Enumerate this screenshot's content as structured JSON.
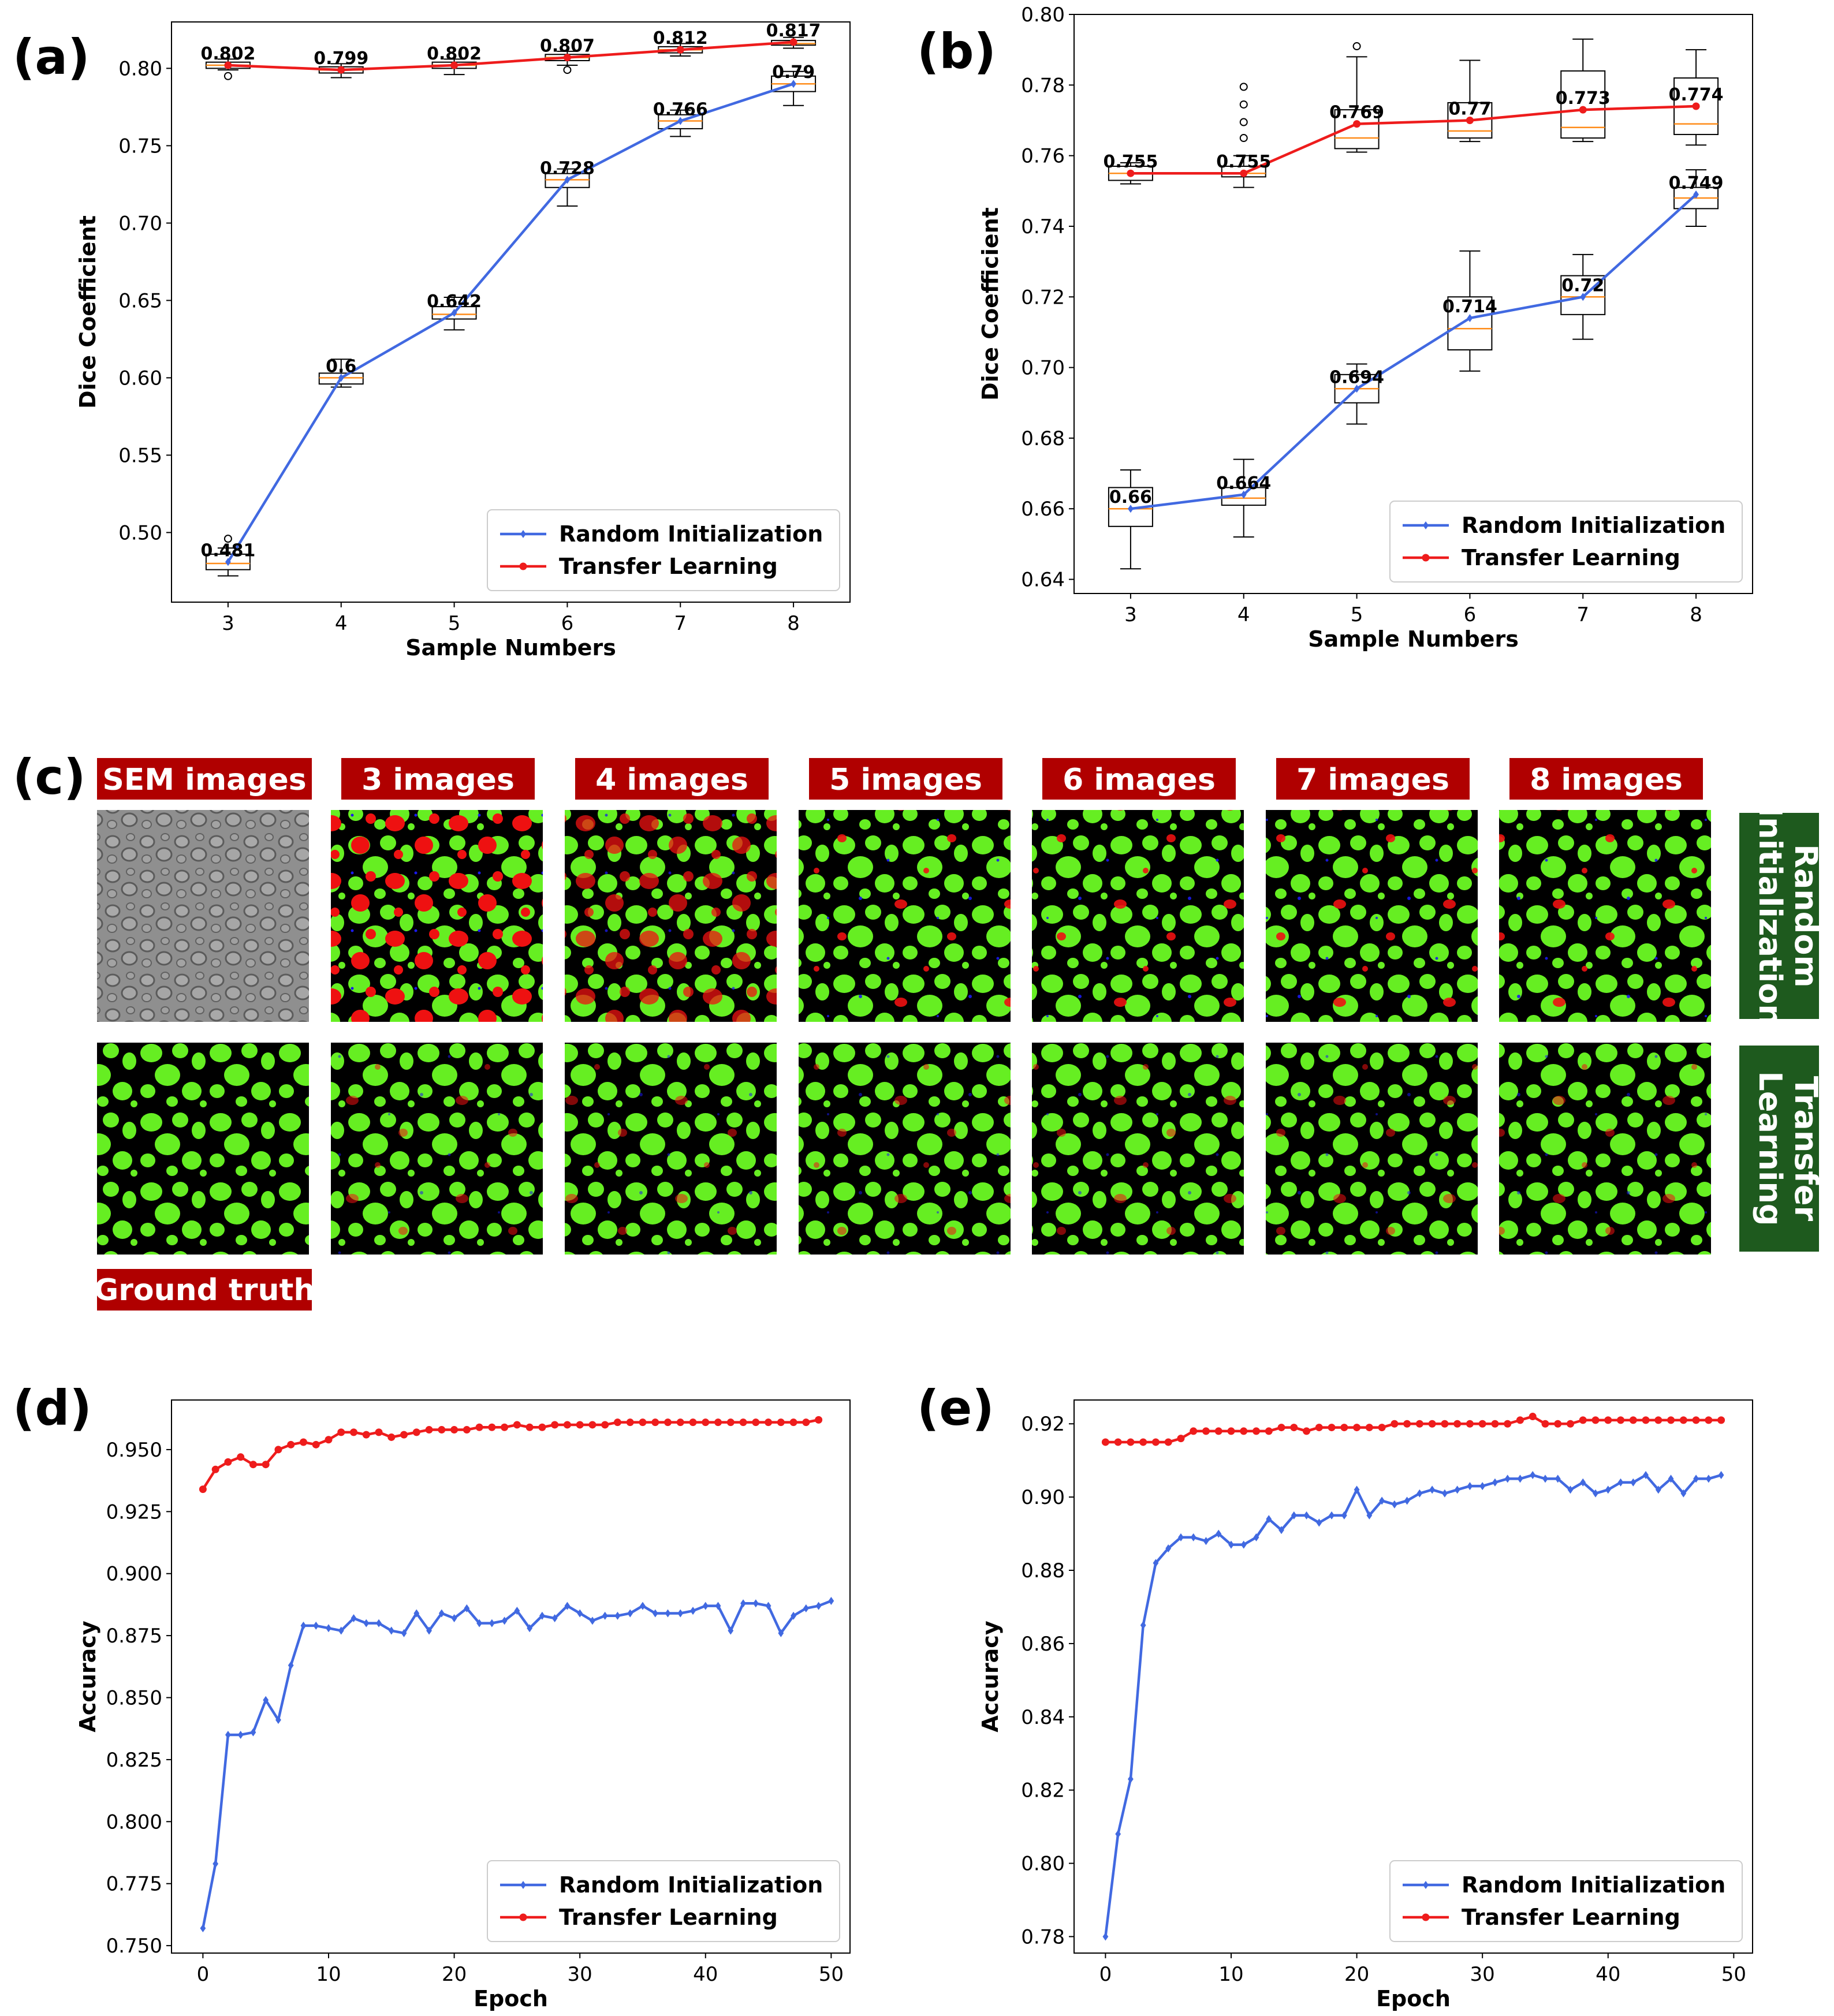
{
  "panels": {
    "a": "(a)",
    "b": "(b)",
    "c": "(c)",
    "d": "(d)",
    "e": "(e)"
  },
  "colors": {
    "random": "#4169e1",
    "transfer": "#ee1c1c",
    "median": "#ff8c1a",
    "header_bg": "#b00000",
    "side_bg": "#1e5a1e",
    "particle": "#66ee22",
    "error": "#ee1111",
    "fp": "#1a1aee"
  },
  "figure_c": {
    "headers": [
      "SEM images",
      "3 images",
      "4 images",
      "5 images",
      "6 images",
      "7 images",
      "8 images"
    ],
    "ground_truth_label": "Ground truth",
    "row_labels": [
      [
        "Random",
        "Initialization"
      ],
      [
        "Transfer",
        "Learning"
      ]
    ]
  },
  "chart_data": [
    {
      "id": "a",
      "type": "line+box",
      "xlabel": "Sample Numbers",
      "ylabel": "Dice Coefficient",
      "x": [
        3,
        4,
        5,
        6,
        7,
        8
      ],
      "xlim": [
        2.5,
        8.5
      ],
      "ylim": [
        0.455,
        0.83
      ],
      "yticks": [
        0.5,
        0.55,
        0.6,
        0.65,
        0.7,
        0.75,
        0.8
      ],
      "ytick_labels": [
        "0.50",
        "0.55",
        "0.60",
        "0.65",
        "0.70",
        "0.75",
        "0.80"
      ],
      "legend": "bottom-right",
      "series": [
        {
          "name": "Random Initialization",
          "color": "#4169e1",
          "marker": "diamond",
          "values": [
            0.481,
            0.6,
            0.642,
            0.728,
            0.766,
            0.79
          ],
          "labels": [
            "0.481",
            "0.6",
            "0.642",
            "0.728",
            "0.766",
            "0.79"
          ],
          "boxes": [
            {
              "q1": 0.476,
              "q3": 0.486,
              "med": 0.48,
              "lo": 0.472,
              "hi": 0.49,
              "out": [
                0.496
              ]
            },
            {
              "q1": 0.596,
              "q3": 0.603,
              "med": 0.6,
              "lo": 0.594,
              "hi": 0.612,
              "out": []
            },
            {
              "q1": 0.638,
              "q3": 0.646,
              "med": 0.641,
              "lo": 0.631,
              "hi": 0.652,
              "out": []
            },
            {
              "q1": 0.723,
              "q3": 0.732,
              "med": 0.728,
              "lo": 0.711,
              "hi": 0.735,
              "out": []
            },
            {
              "q1": 0.761,
              "q3": 0.77,
              "med": 0.766,
              "lo": 0.756,
              "hi": 0.773,
              "out": []
            },
            {
              "q1": 0.785,
              "q3": 0.795,
              "med": 0.79,
              "lo": 0.776,
              "hi": 0.798,
              "out": []
            }
          ]
        },
        {
          "name": "Transfer Learning",
          "color": "#ee1c1c",
          "marker": "circle",
          "values": [
            0.802,
            0.799,
            0.802,
            0.807,
            0.812,
            0.817
          ],
          "labels": [
            "0.802",
            "0.799",
            "0.802",
            "0.807",
            "0.812",
            "0.817"
          ],
          "boxes": [
            {
              "q1": 0.8,
              "q3": 0.804,
              "med": 0.802,
              "lo": 0.799,
              "hi": 0.806,
              "out": [
                0.795
              ]
            },
            {
              "q1": 0.797,
              "q3": 0.801,
              "med": 0.799,
              "lo": 0.794,
              "hi": 0.803,
              "out": []
            },
            {
              "q1": 0.8,
              "q3": 0.804,
              "med": 0.802,
              "lo": 0.796,
              "hi": 0.806,
              "out": []
            },
            {
              "q1": 0.805,
              "q3": 0.809,
              "med": 0.807,
              "lo": 0.802,
              "hi": 0.811,
              "out": [
                0.799
              ]
            },
            {
              "q1": 0.81,
              "q3": 0.814,
              "med": 0.812,
              "lo": 0.808,
              "hi": 0.816,
              "out": []
            },
            {
              "q1": 0.815,
              "q3": 0.818,
              "med": 0.816,
              "lo": 0.813,
              "hi": 0.82,
              "out": []
            }
          ]
        }
      ]
    },
    {
      "id": "b",
      "type": "line+box",
      "xlabel": "Sample Numbers",
      "ylabel": "Dice Coefficient",
      "x": [
        3,
        4,
        5,
        6,
        7,
        8
      ],
      "xlim": [
        2.5,
        8.5
      ],
      "ylim": [
        0.636,
        0.8
      ],
      "yticks": [
        0.64,
        0.66,
        0.68,
        0.7,
        0.72,
        0.74,
        0.76,
        0.78,
        0.8
      ],
      "ytick_labels": [
        "0.64",
        "0.66",
        "0.68",
        "0.70",
        "0.72",
        "0.74",
        "0.76",
        "0.78",
        "0.80"
      ],
      "legend": "bottom-right",
      "series": [
        {
          "name": "Random Initialization",
          "color": "#4169e1",
          "marker": "diamond",
          "values": [
            0.66,
            0.664,
            0.694,
            0.714,
            0.72,
            0.749
          ],
          "labels": [
            "0.66",
            "0.664",
            "0.694",
            "0.714",
            "0.72",
            "0.749"
          ],
          "boxes": [
            {
              "q1": 0.655,
              "q3": 0.666,
              "med": 0.66,
              "lo": 0.643,
              "hi": 0.671,
              "out": []
            },
            {
              "q1": 0.661,
              "q3": 0.666,
              "med": 0.663,
              "lo": 0.652,
              "hi": 0.674,
              "out": []
            },
            {
              "q1": 0.69,
              "q3": 0.698,
              "med": 0.694,
              "lo": 0.684,
              "hi": 0.701,
              "out": []
            },
            {
              "q1": 0.705,
              "q3": 0.72,
              "med": 0.711,
              "lo": 0.699,
              "hi": 0.733,
              "out": []
            },
            {
              "q1": 0.715,
              "q3": 0.726,
              "med": 0.72,
              "lo": 0.708,
              "hi": 0.732,
              "out": []
            },
            {
              "q1": 0.745,
              "q3": 0.751,
              "med": 0.748,
              "lo": 0.74,
              "hi": 0.756,
              "out": []
            }
          ]
        },
        {
          "name": "Transfer Learning",
          "color": "#ee1c1c",
          "marker": "circle",
          "values": [
            0.755,
            0.755,
            0.769,
            0.77,
            0.773,
            0.774
          ],
          "labels": [
            "0.755",
            "0.755",
            "0.769",
            "0.77",
            "0.773",
            "0.774"
          ],
          "boxes": [
            {
              "q1": 0.753,
              "q3": 0.757,
              "med": 0.755,
              "lo": 0.752,
              "hi": 0.758,
              "out": []
            },
            {
              "q1": 0.754,
              "q3": 0.757,
              "med": 0.755,
              "lo": 0.751,
              "hi": 0.76,
              "out": [
                0.765,
                0.7695,
                0.7745,
                0.7795
              ]
            },
            {
              "q1": 0.762,
              "q3": 0.773,
              "med": 0.765,
              "lo": 0.761,
              "hi": 0.788,
              "out": [
                0.791
              ]
            },
            {
              "q1": 0.765,
              "q3": 0.775,
              "med": 0.767,
              "lo": 0.764,
              "hi": 0.787,
              "out": []
            },
            {
              "q1": 0.765,
              "q3": 0.784,
              "med": 0.768,
              "lo": 0.764,
              "hi": 0.793,
              "out": []
            },
            {
              "q1": 0.766,
              "q3": 0.782,
              "med": 0.769,
              "lo": 0.763,
              "hi": 0.79,
              "out": []
            }
          ]
        }
      ]
    },
    {
      "id": "d",
      "type": "line",
      "xlabel": "Epoch",
      "ylabel": "Accuracy",
      "xlim": [
        -2.5,
        51.5
      ],
      "ylim": [
        0.747,
        0.97
      ],
      "xticks": [
        0,
        10,
        20,
        30,
        40,
        50
      ],
      "xtick_labels": [
        "0",
        "10",
        "20",
        "30",
        "40",
        "50"
      ],
      "yticks": [
        0.75,
        0.775,
        0.8,
        0.825,
        0.85,
        0.875,
        0.9,
        0.925,
        0.95
      ],
      "ytick_labels": [
        "0.750",
        "0.775",
        "0.800",
        "0.825",
        "0.850",
        "0.875",
        "0.900",
        "0.925",
        "0.950"
      ],
      "legend": "bottom-right",
      "series": [
        {
          "name": "Random Initialization",
          "color": "#4169e1",
          "marker": "diamond",
          "values": [
            0.757,
            0.783,
            0.835,
            0.835,
            0.836,
            0.849,
            0.841,
            0.863,
            0.879,
            0.879,
            0.878,
            0.877,
            0.882,
            0.88,
            0.88,
            0.877,
            0.876,
            0.884,
            0.877,
            0.884,
            0.882,
            0.886,
            0.88,
            0.88,
            0.881,
            0.885,
            0.878,
            0.883,
            0.882,
            0.887,
            0.884,
            0.881,
            0.883,
            0.883,
            0.884,
            0.887,
            0.884,
            0.884,
            0.884,
            0.885,
            0.887,
            0.887,
            0.877,
            0.888,
            0.888,
            0.887,
            0.876,
            0.883,
            0.886,
            0.887,
            0.889
          ]
        },
        {
          "name": "Transfer Learning",
          "color": "#ee1c1c",
          "marker": "circle",
          "values": [
            0.934,
            0.942,
            0.945,
            0.947,
            0.944,
            0.944,
            0.95,
            0.952,
            0.953,
            0.952,
            0.954,
            0.957,
            0.957,
            0.956,
            0.957,
            0.955,
            0.956,
            0.957,
            0.958,
            0.958,
            0.958,
            0.958,
            0.959,
            0.959,
            0.959,
            0.96,
            0.959,
            0.959,
            0.96,
            0.96,
            0.96,
            0.96,
            0.96,
            0.961,
            0.961,
            0.961,
            0.961,
            0.961,
            0.961,
            0.961,
            0.961,
            0.961,
            0.961,
            0.961,
            0.961,
            0.961,
            0.961,
            0.961,
            0.961,
            0.962
          ]
        }
      ]
    },
    {
      "id": "e",
      "type": "line",
      "xlabel": "Epoch",
      "ylabel": "Accuracy",
      "xlim": [
        -2.5,
        51.5
      ],
      "ylim": [
        0.7755,
        0.9265
      ],
      "xticks": [
        0,
        10,
        20,
        30,
        40,
        50
      ],
      "xtick_labels": [
        "0",
        "10",
        "20",
        "30",
        "40",
        "50"
      ],
      "yticks": [
        0.78,
        0.8,
        0.82,
        0.84,
        0.86,
        0.88,
        0.9,
        0.92
      ],
      "ytick_labels": [
        "0.78",
        "0.80",
        "0.82",
        "0.84",
        "0.86",
        "0.88",
        "0.90",
        "0.92"
      ],
      "legend": "bottom-right",
      "series": [
        {
          "name": "Random Initialization",
          "color": "#4169e1",
          "marker": "diamond",
          "values": [
            0.78,
            0.808,
            0.823,
            0.865,
            0.882,
            0.886,
            0.889,
            0.889,
            0.888,
            0.89,
            0.887,
            0.887,
            0.889,
            0.894,
            0.891,
            0.895,
            0.895,
            0.893,
            0.895,
            0.895,
            0.902,
            0.895,
            0.899,
            0.898,
            0.899,
            0.901,
            0.902,
            0.901,
            0.902,
            0.903,
            0.903,
            0.904,
            0.905,
            0.905,
            0.906,
            0.905,
            0.905,
            0.902,
            0.904,
            0.901,
            0.902,
            0.904,
            0.904,
            0.906,
            0.902,
            0.905,
            0.901,
            0.905,
            0.905,
            0.906
          ]
        },
        {
          "name": "Transfer Learning",
          "color": "#ee1c1c",
          "marker": "circle",
          "values": [
            0.915,
            0.915,
            0.915,
            0.915,
            0.915,
            0.915,
            0.916,
            0.918,
            0.918,
            0.918,
            0.918,
            0.918,
            0.918,
            0.918,
            0.919,
            0.919,
            0.918,
            0.919,
            0.919,
            0.919,
            0.919,
            0.919,
            0.919,
            0.92,
            0.92,
            0.92,
            0.92,
            0.92,
            0.92,
            0.92,
            0.92,
            0.92,
            0.92,
            0.921,
            0.922,
            0.92,
            0.92,
            0.92,
            0.921,
            0.921,
            0.921,
            0.921,
            0.921,
            0.921,
            0.921,
            0.921,
            0.921,
            0.921,
            0.921,
            0.921
          ]
        }
      ]
    }
  ]
}
